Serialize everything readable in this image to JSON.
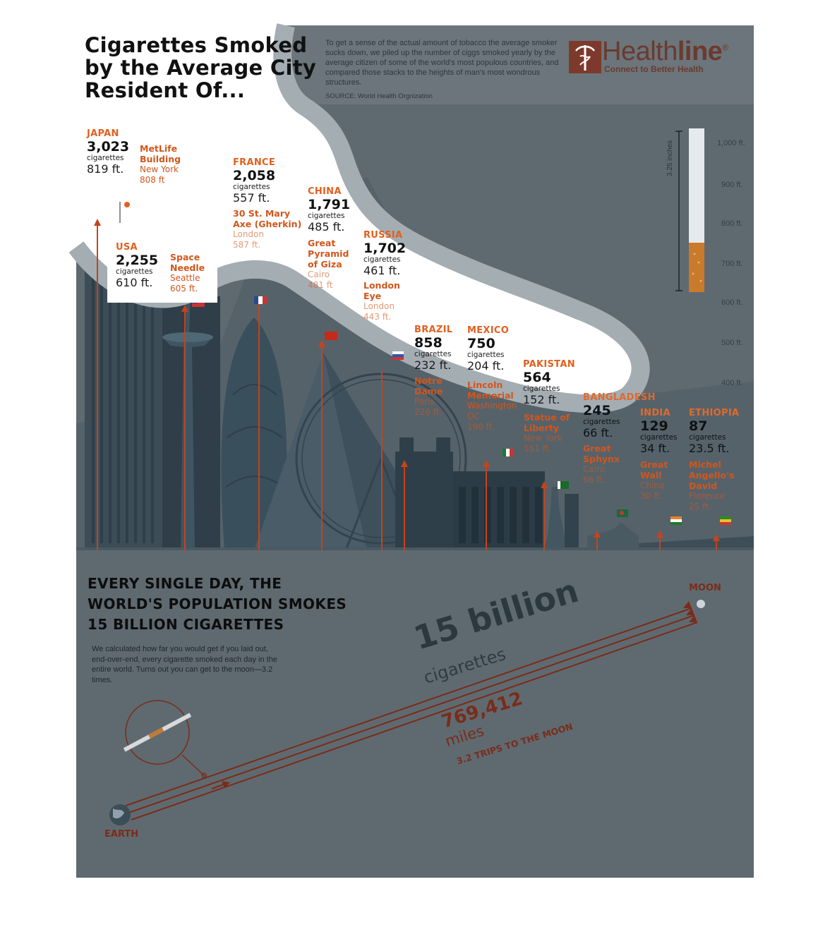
{
  "header": {
    "title_lines": [
      "Cigarettes Smoked",
      "by the Average City",
      "Resident Of..."
    ],
    "intro": "To get a sense of the actual amount of tobacco the average smoker sucks down, we piled up the number of ciggs smoked yearly by the average citizen of some of the world's most populous countries, and compared those stacks to the heights of man's most wondrous structures.",
    "source": "SOURCE: World Health Orgnization"
  },
  "logo": {
    "word_regular": "Health",
    "word_bold": "line",
    "registered": "®",
    "tagline": "Connect to Better Health"
  },
  "height_scale": {
    "ticks": [
      "1,000 ft.",
      "900 ft.",
      "800 ft.",
      "700 ft.",
      "600 ft.",
      "500 ft.",
      "400 ft."
    ],
    "cigarette_label": "3.25 inches"
  },
  "countries": [
    {
      "name": "JAPAN",
      "count": "3,023",
      "unit": "cigarettes",
      "height": "819 ft.",
      "landmark": "MetLife Building",
      "landmark_lines": [
        "MetLife",
        "Building"
      ],
      "city": "New York",
      "landmark_height": "808 ft"
    },
    {
      "name": "USA",
      "count": "2,255",
      "unit": "cigarettes",
      "height": "610 ft.",
      "landmark": "Space Needle",
      "landmark_lines": [
        "Space",
        "Needle"
      ],
      "city": "Seattle",
      "landmark_height": "605 ft."
    },
    {
      "name": "FRANCE",
      "count": "2,058",
      "unit": "cigarettes",
      "height": "557 ft.",
      "landmark": "30 St. Mary Axe (Gherkin)",
      "landmark_lines": [
        "30 St. Mary",
        "Axe (Gherkin)"
      ],
      "city": "London",
      "landmark_height": "587 ft."
    },
    {
      "name": "CHINA",
      "count": "1,791",
      "unit": "cigarettes",
      "height": "485 ft.",
      "landmark": "Great Pyramid of Giza",
      "landmark_lines": [
        "Great",
        "Pyramid",
        "of Giza"
      ],
      "city": "Cairo",
      "landmark_height": "481 ft"
    },
    {
      "name": "RUSSIA",
      "count": "1,702",
      "unit": "cigarettes",
      "height": "461 ft.",
      "landmark": "London Eye",
      "landmark_lines": [
        "London",
        "Eye"
      ],
      "city": "London",
      "landmark_height": "443 ft."
    },
    {
      "name": "BRAZIL",
      "count": "858",
      "unit": "cigarettes",
      "height": "232 ft.",
      "landmark": "Notre Dame",
      "landmark_lines": [
        "Notre",
        "Dame"
      ],
      "city": "Paris",
      "landmark_height": "226 ft."
    },
    {
      "name": "MEXICO",
      "count": "750",
      "unit": "cigarettes",
      "height": "204 ft.",
      "landmark": "Lincoln Memorial",
      "landmark_lines": [
        "Lincoln",
        "Memorial"
      ],
      "city": "Washington DC",
      "city_lines": [
        "Washington",
        "DC"
      ],
      "landmark_height": "190 ft."
    },
    {
      "name": "PAKISTAN",
      "count": "564",
      "unit": "cigarettes",
      "height": "152 ft.",
      "landmark": "Statue of Liberty",
      "landmark_lines": [
        "Statue of",
        "Liberty"
      ],
      "city": "New York",
      "landmark_height": "151 ft."
    },
    {
      "name": "BANGLADESH",
      "count": "245",
      "unit": "cigarettes",
      "height": "66 ft.",
      "landmark": "Great Sphynx",
      "landmark_lines": [
        "Great",
        "Sphynx"
      ],
      "city": "Cairo",
      "landmark_height": "66 ft."
    },
    {
      "name": "INDIA",
      "count": "129",
      "unit": "cigarettes",
      "height": "34 ft.",
      "landmark": "Great Wall",
      "landmark_lines": [
        "Great",
        "Wall"
      ],
      "city": "China",
      "landmark_height": "30 ft."
    },
    {
      "name": "ETHIOPIA",
      "count": "87",
      "unit": "cigarettes",
      "height": "23.5 ft.",
      "landmark": "Michel Angello's David",
      "landmark_lines": [
        "Michel",
        "Angello's",
        "David"
      ],
      "city": "Florence",
      "landmark_height": "25 ft."
    }
  ],
  "bottom": {
    "headline_lines": [
      "EVERY SINGLE DAY, THE",
      "WORLD'S  POPULATION SMOKES",
      "15 BILLION CIGARETTES"
    ],
    "explanation": "We calculated how far you would get if you laid out, end-over-end, every cigarette smoked each day in the entire world. Turns out you can get to the moon—3.2 times.",
    "big_number": "15 billion",
    "big_unit": "cigarettes",
    "miles_number": "769,412",
    "miles_unit": "miles",
    "trips": "3.2 TRIPS TO THE MOON",
    "moon_label": "MOON",
    "earth_label": "EARTH"
  },
  "colors": {
    "background_panel": "#5f6a70",
    "header_band": "#6a747a",
    "accent_orange": "#e2601f",
    "trajectory": "#7a2c1a",
    "cloud_border": "#9aa3a8"
  }
}
